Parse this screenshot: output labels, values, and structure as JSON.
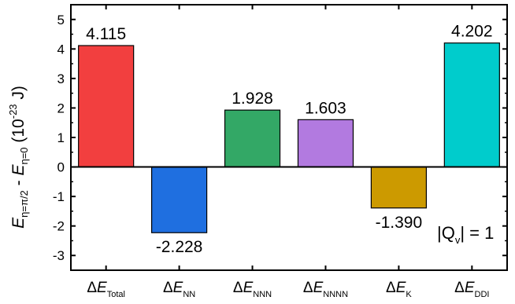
{
  "chart_data": {
    "type": "bar",
    "categories": [
      {
        "main": "ΔE",
        "sub": "Total"
      },
      {
        "main": "ΔE",
        "sub": "NN"
      },
      {
        "main": "ΔE",
        "sub": "NNN"
      },
      {
        "main": "ΔE",
        "sub": "NNNN"
      },
      {
        "main": "ΔE",
        "sub": "K"
      },
      {
        "main": "ΔE",
        "sub": "DDI"
      }
    ],
    "values": [
      4.115,
      -2.228,
      1.928,
      1.603,
      -1.39,
      4.202
    ],
    "value_labels": [
      "4.115",
      "-2.228",
      "1.928",
      "1.603",
      "-1.390",
      "4.202"
    ],
    "colors": [
      "#f23f3f",
      "#1f6fe0",
      "#33a866",
      "#b27ae0",
      "#cc9a00",
      "#00cccc"
    ],
    "ylim": [
      -3.5,
      5.5
    ],
    "yticks": [
      -3,
      -2,
      -1,
      0,
      1,
      2,
      3,
      4,
      5
    ],
    "zero_line": true,
    "grid": false,
    "ylabel": {
      "e1": "E",
      "s1": "η=π/2",
      "mid": " - ",
      "e2": "E",
      "s2": "η=0",
      "unit_open": " (10",
      "exp": "-23",
      "unit_close": " J)"
    },
    "annotation": {
      "left": "|Q",
      "sub": "v",
      "right": "| = 1"
    }
  }
}
